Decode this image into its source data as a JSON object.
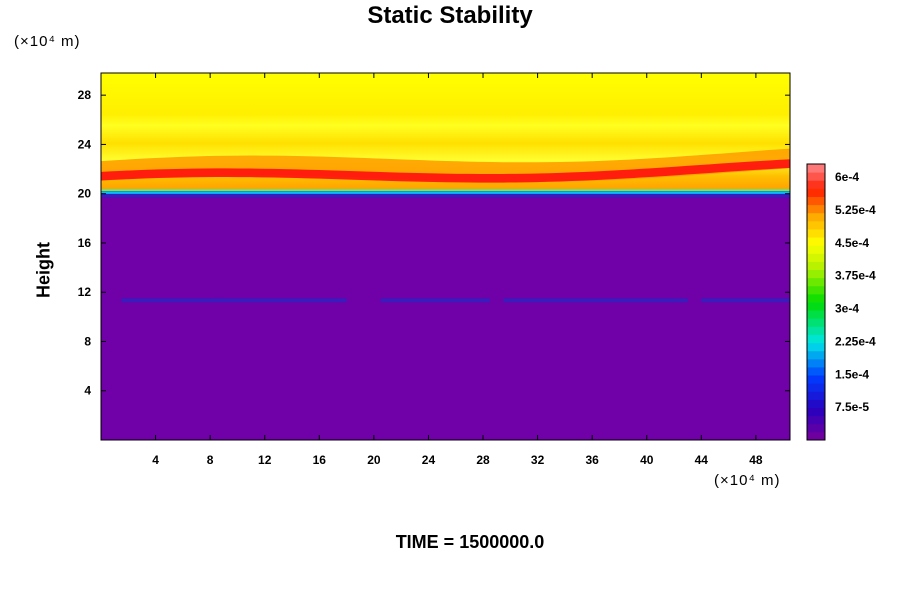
{
  "chart_data": {
    "type": "heatmap",
    "title": "Static Stability",
    "xlabel": "",
    "ylabel": "Height",
    "x_unit": "(×10⁴ m)",
    "y_unit": "(×10⁴ m)",
    "xlim": [
      0,
      50.5
    ],
    "ylim": [
      0,
      29.8
    ],
    "x_ticks": [
      4,
      8,
      12,
      16,
      20,
      24,
      28,
      32,
      36,
      40,
      44,
      48
    ],
    "y_ticks": [
      4,
      8,
      12,
      16,
      20,
      24,
      28
    ],
    "colorbar": {
      "min": 0,
      "max": 0.00063,
      "step": 1.88e-05,
      "tick_values": [
        7.5e-05,
        0.00015,
        0.000225,
        0.0003,
        0.000375,
        0.00045,
        0.000525,
        0.0006
      ],
      "tick_labels": [
        "7.5e-5",
        "1.5e-4",
        "2.25e-4",
        "3e-4",
        "3.75e-4",
        "4.5e-4",
        "5.25e-4",
        "6e-4"
      ]
    },
    "colors": {
      "purple": "#7000a8",
      "blue": "#3020c0",
      "yellow": "#ffff00",
      "orange": "#ffa000",
      "red": "#ff1010"
    },
    "footer": "TIME = 1500000.0"
  }
}
